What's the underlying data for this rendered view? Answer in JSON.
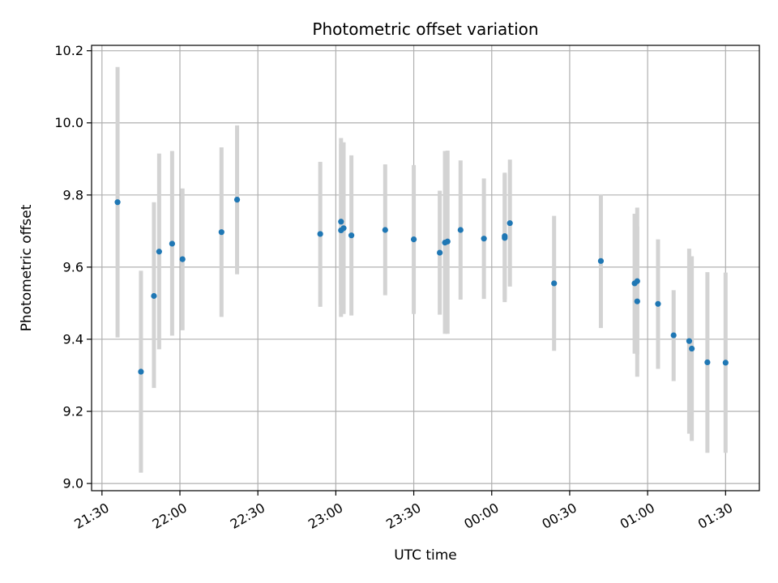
{
  "chart_data": {
    "type": "scatter",
    "title": "Photometric offset variation",
    "xlabel": "UTC time",
    "ylabel": "Photometric offset",
    "grid": true,
    "colors": {
      "point": "#1f77b4",
      "errorbar": "#d3d3d3",
      "grid": "#b0b0b0"
    },
    "x_ticks": [
      "21:30",
      "22:00",
      "22:30",
      "23:00",
      "23:30",
      "00:00",
      "00:30",
      "01:00",
      "01:30"
    ],
    "y_ticks": [
      "9.0",
      "9.2",
      "9.4",
      "9.6",
      "9.8",
      "10.0",
      "10.2"
    ],
    "y_range": [
      8.98,
      10.215
    ],
    "x_range": [
      "21:26",
      "01:43"
    ],
    "series": [
      {
        "points": [
          {
            "t": "21:36",
            "y": 9.78,
            "lo": 9.405,
            "hi": 10.155
          },
          {
            "t": "21:45",
            "y": 9.31,
            "lo": 9.03,
            "hi": 9.59
          },
          {
            "t": "21:50",
            "y": 9.52,
            "lo": 9.265,
            "hi": 9.78
          },
          {
            "t": "21:52",
            "y": 9.643,
            "lo": 9.372,
            "hi": 9.915
          },
          {
            "t": "21:57",
            "y": 9.665,
            "lo": 9.41,
            "hi": 9.922
          },
          {
            "t": "22:01",
            "y": 9.622,
            "lo": 9.425,
            "hi": 9.818
          },
          {
            "t": "22:16",
            "y": 9.697,
            "lo": 9.462,
            "hi": 9.932
          },
          {
            "t": "22:22",
            "y": 9.787,
            "lo": 9.58,
            "hi": 9.993
          },
          {
            "t": "22:54",
            "y": 9.692,
            "lo": 9.49,
            "hi": 9.892
          },
          {
            "t": "23:02",
            "y": 9.726,
            "lo": 9.495,
            "hi": 9.958
          },
          {
            "t": "23:02",
            "y": 9.702,
            "lo": 9.462,
            "hi": 9.942
          },
          {
            "t": "23:03",
            "y": 9.708,
            "lo": 9.47,
            "hi": 9.946
          },
          {
            "t": "23:06",
            "y": 9.688,
            "lo": 9.466,
            "hi": 9.91
          },
          {
            "t": "23:19",
            "y": 9.703,
            "lo": 9.522,
            "hi": 9.885
          },
          {
            "t": "23:30",
            "y": 9.677,
            "lo": 9.47,
            "hi": 9.883
          },
          {
            "t": "23:40",
            "y": 9.64,
            "lo": 9.468,
            "hi": 9.812
          },
          {
            "t": "23:42",
            "y": 9.668,
            "lo": 9.415,
            "hi": 9.922
          },
          {
            "t": "23:43",
            "y": 9.671,
            "lo": 9.415,
            "hi": 9.923
          },
          {
            "t": "23:48",
            "y": 9.703,
            "lo": 9.51,
            "hi": 9.896
          },
          {
            "t": "23:57",
            "y": 9.679,
            "lo": 9.512,
            "hi": 9.846
          },
          {
            "t": "00:05",
            "y": 9.681,
            "lo": 9.503,
            "hi": 9.858
          },
          {
            "t": "00:05",
            "y": 9.686,
            "lo": 9.51,
            "hi": 9.862
          },
          {
            "t": "00:07",
            "y": 9.722,
            "lo": 9.546,
            "hi": 9.898
          },
          {
            "t": "00:24",
            "y": 9.555,
            "lo": 9.368,
            "hi": 9.742
          },
          {
            "t": "00:42",
            "y": 9.617,
            "lo": 9.431,
            "hi": 9.802
          },
          {
            "t": "00:55",
            "y": 9.555,
            "lo": 9.36,
            "hi": 9.748
          },
          {
            "t": "00:56",
            "y": 9.505,
            "lo": 9.296,
            "hi": 9.713
          },
          {
            "t": "00:56",
            "y": 9.561,
            "lo": 9.358,
            "hi": 9.765
          },
          {
            "t": "01:04",
            "y": 9.498,
            "lo": 9.318,
            "hi": 9.677
          },
          {
            "t": "01:10",
            "y": 9.411,
            "lo": 9.284,
            "hi": 9.536
          },
          {
            "t": "01:16",
            "y": 9.395,
            "lo": 9.138,
            "hi": 9.651
          },
          {
            "t": "01:17",
            "y": 9.374,
            "lo": 9.118,
            "hi": 9.63
          },
          {
            "t": "01:23",
            "y": 9.336,
            "lo": 9.085,
            "hi": 9.586
          },
          {
            "t": "01:30",
            "y": 9.335,
            "lo": 9.085,
            "hi": 9.585
          }
        ]
      }
    ]
  }
}
